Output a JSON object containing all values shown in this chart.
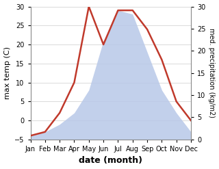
{
  "months": [
    "Jan",
    "Feb",
    "Mar",
    "Apr",
    "May",
    "Jun",
    "Jul",
    "Aug",
    "Sep",
    "Oct",
    "Nov",
    "Dec"
  ],
  "temperature": [
    -4,
    -3,
    2,
    10,
    30,
    20,
    29,
    29,
    24,
    16,
    5,
    0
  ],
  "precipitation": [
    -4,
    -3,
    -1,
    2,
    8,
    21,
    29,
    28,
    18,
    8,
    2,
    -3
  ],
  "temp_ylim": [
    -5,
    30
  ],
  "precip_ylim": [
    0,
    30
  ],
  "temp_color": "#c0392b",
  "fill_color": "#b8c8e8",
  "fill_alpha": 0.85,
  "line_width": 1.8,
  "xlabel": "date (month)",
  "ylabel_left": "max temp (C)",
  "ylabel_right": "med. precipitation (kg/m2)",
  "bg_color": "#ffffff",
  "label_fontsize": 8,
  "tick_fontsize": 7
}
